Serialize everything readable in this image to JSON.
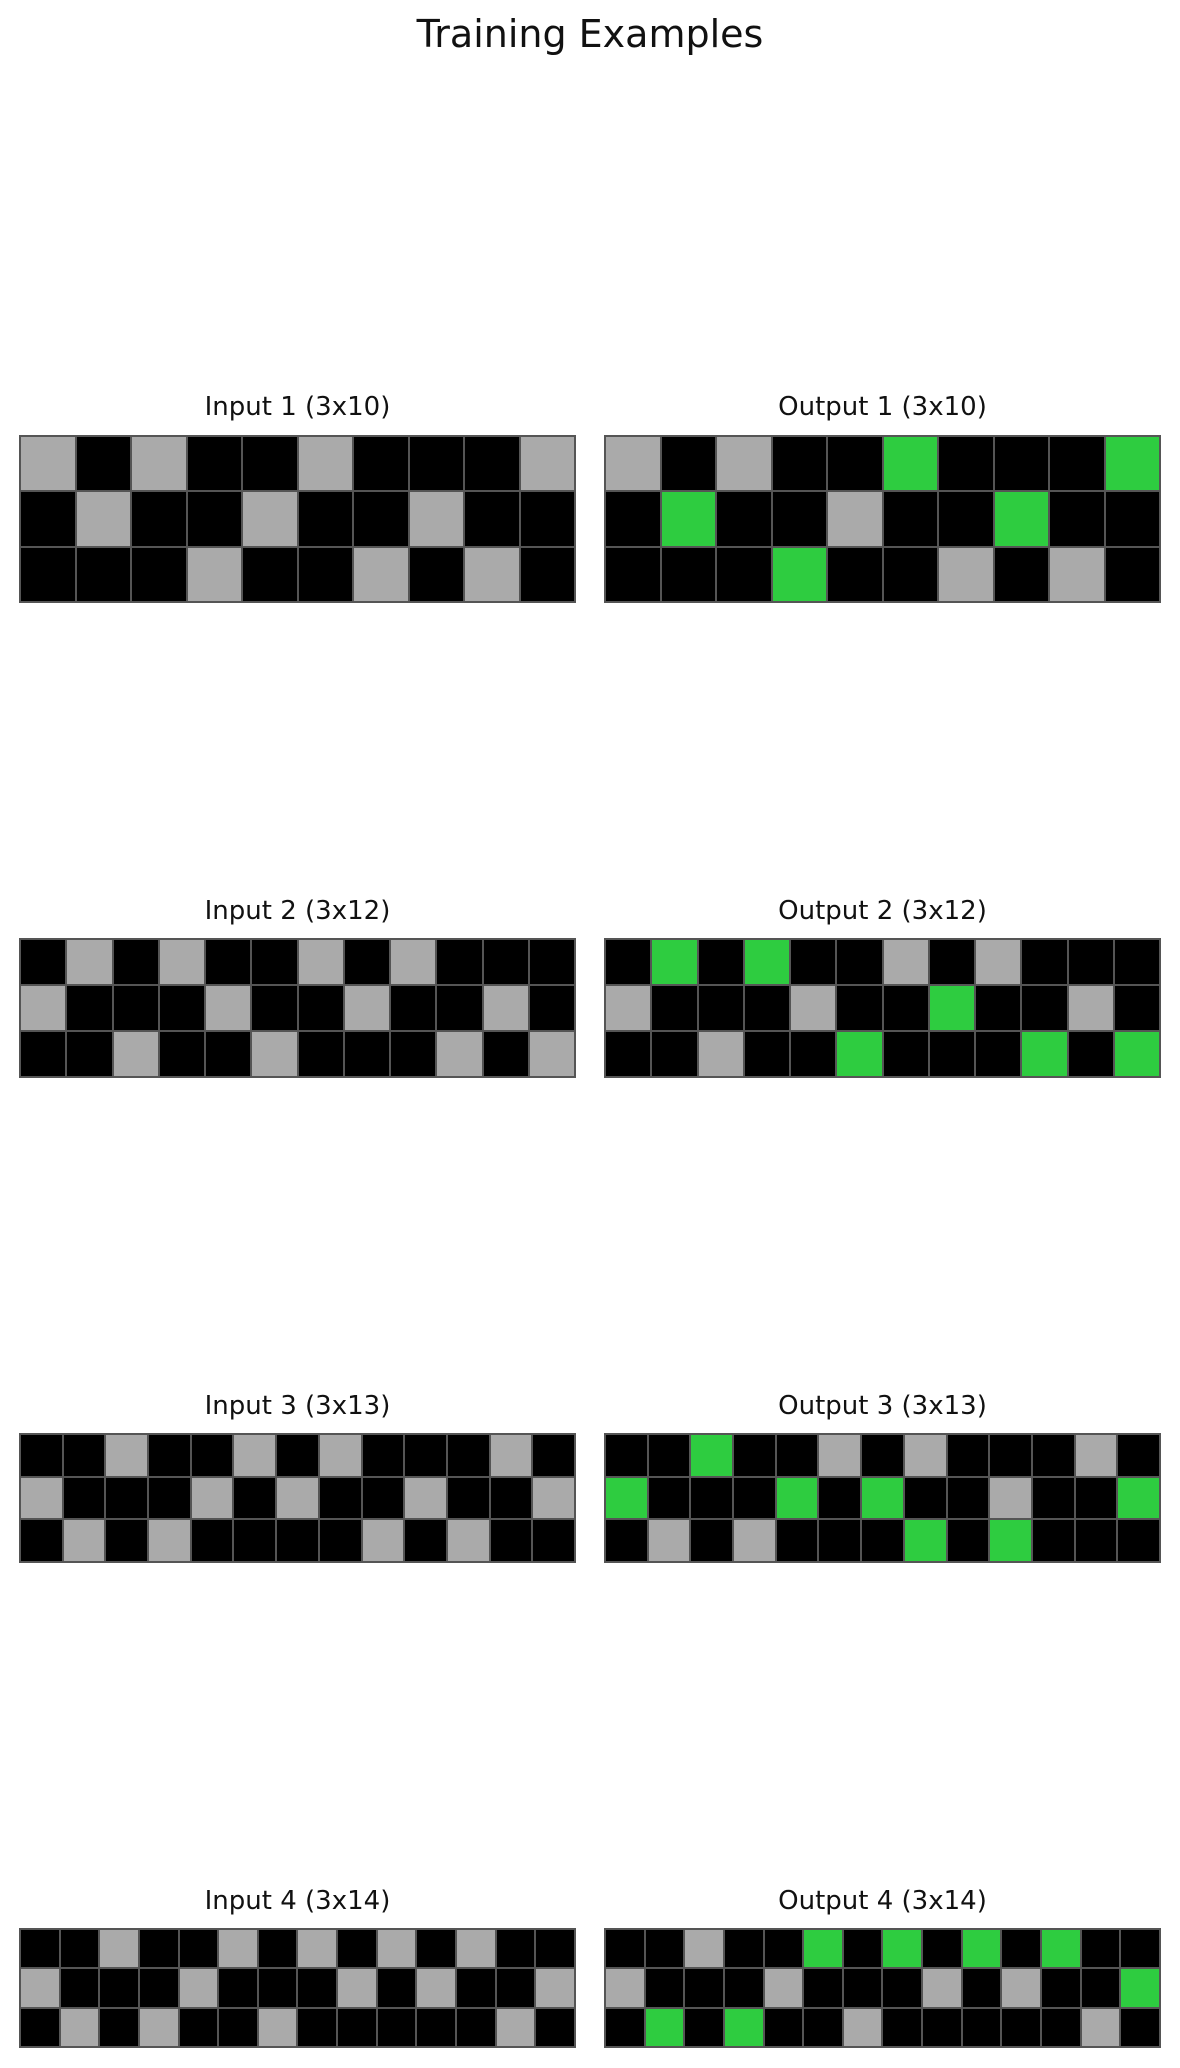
{
  "title": "Training Examples",
  "colors": {
    "0": "#000000",
    "5": "#aaaaaa",
    "3": "#2ecc40"
  },
  "examples": [
    {
      "input_title": "Input 1 (3x10)",
      "output_title": "Output 1 (3x10)",
      "input": [
        [
          5,
          0,
          5,
          0,
          0,
          5,
          0,
          0,
          0,
          5
        ],
        [
          0,
          5,
          0,
          0,
          5,
          0,
          0,
          5,
          0,
          0
        ],
        [
          0,
          0,
          0,
          5,
          0,
          0,
          5,
          0,
          5,
          0
        ]
      ],
      "output": [
        [
          5,
          0,
          5,
          0,
          0,
          3,
          0,
          0,
          0,
          3
        ],
        [
          0,
          3,
          0,
          0,
          5,
          0,
          0,
          3,
          0,
          0
        ],
        [
          0,
          0,
          0,
          3,
          0,
          0,
          5,
          0,
          5,
          0
        ]
      ]
    },
    {
      "input_title": "Input 2 (3x12)",
      "output_title": "Output 2 (3x12)",
      "input": [
        [
          0,
          5,
          0,
          5,
          0,
          0,
          5,
          0,
          5,
          0,
          0,
          0
        ],
        [
          5,
          0,
          0,
          0,
          5,
          0,
          0,
          5,
          0,
          0,
          5,
          0
        ],
        [
          0,
          0,
          5,
          0,
          0,
          5,
          0,
          0,
          0,
          5,
          0,
          5
        ]
      ],
      "output": [
        [
          0,
          3,
          0,
          3,
          0,
          0,
          5,
          0,
          5,
          0,
          0,
          0
        ],
        [
          5,
          0,
          0,
          0,
          5,
          0,
          0,
          3,
          0,
          0,
          5,
          0
        ],
        [
          0,
          0,
          5,
          0,
          0,
          3,
          0,
          0,
          0,
          3,
          0,
          3
        ]
      ]
    },
    {
      "input_title": "Input 3 (3x13)",
      "output_title": "Output 3 (3x13)",
      "input": [
        [
          0,
          0,
          5,
          0,
          0,
          5,
          0,
          5,
          0,
          0,
          0,
          5,
          0
        ],
        [
          5,
          0,
          0,
          0,
          5,
          0,
          5,
          0,
          0,
          5,
          0,
          0,
          5
        ],
        [
          0,
          5,
          0,
          5,
          0,
          0,
          0,
          0,
          5,
          0,
          5,
          0,
          0
        ]
      ],
      "output": [
        [
          0,
          0,
          3,
          0,
          0,
          5,
          0,
          5,
          0,
          0,
          0,
          5,
          0
        ],
        [
          3,
          0,
          0,
          0,
          3,
          0,
          3,
          0,
          0,
          5,
          0,
          0,
          3
        ],
        [
          0,
          5,
          0,
          5,
          0,
          0,
          0,
          3,
          0,
          3,
          0,
          0,
          0
        ]
      ]
    },
    {
      "input_title": "Input 4 (3x14)",
      "output_title": "Output 4 (3x14)",
      "input": [
        [
          0,
          0,
          5,
          0,
          0,
          5,
          0,
          5,
          0,
          5,
          0,
          5,
          0,
          0
        ],
        [
          5,
          0,
          0,
          0,
          5,
          0,
          0,
          0,
          5,
          0,
          5,
          0,
          0,
          5
        ],
        [
          0,
          5,
          0,
          5,
          0,
          0,
          5,
          0,
          0,
          0,
          0,
          0,
          5,
          0
        ]
      ],
      "output": [
        [
          0,
          0,
          5,
          0,
          0,
          3,
          0,
          3,
          0,
          3,
          0,
          3,
          0,
          0
        ],
        [
          5,
          0,
          0,
          0,
          5,
          0,
          0,
          0,
          5,
          0,
          5,
          0,
          0,
          3
        ],
        [
          0,
          3,
          0,
          3,
          0,
          0,
          5,
          0,
          0,
          0,
          0,
          0,
          5,
          0
        ]
      ]
    }
  ]
}
